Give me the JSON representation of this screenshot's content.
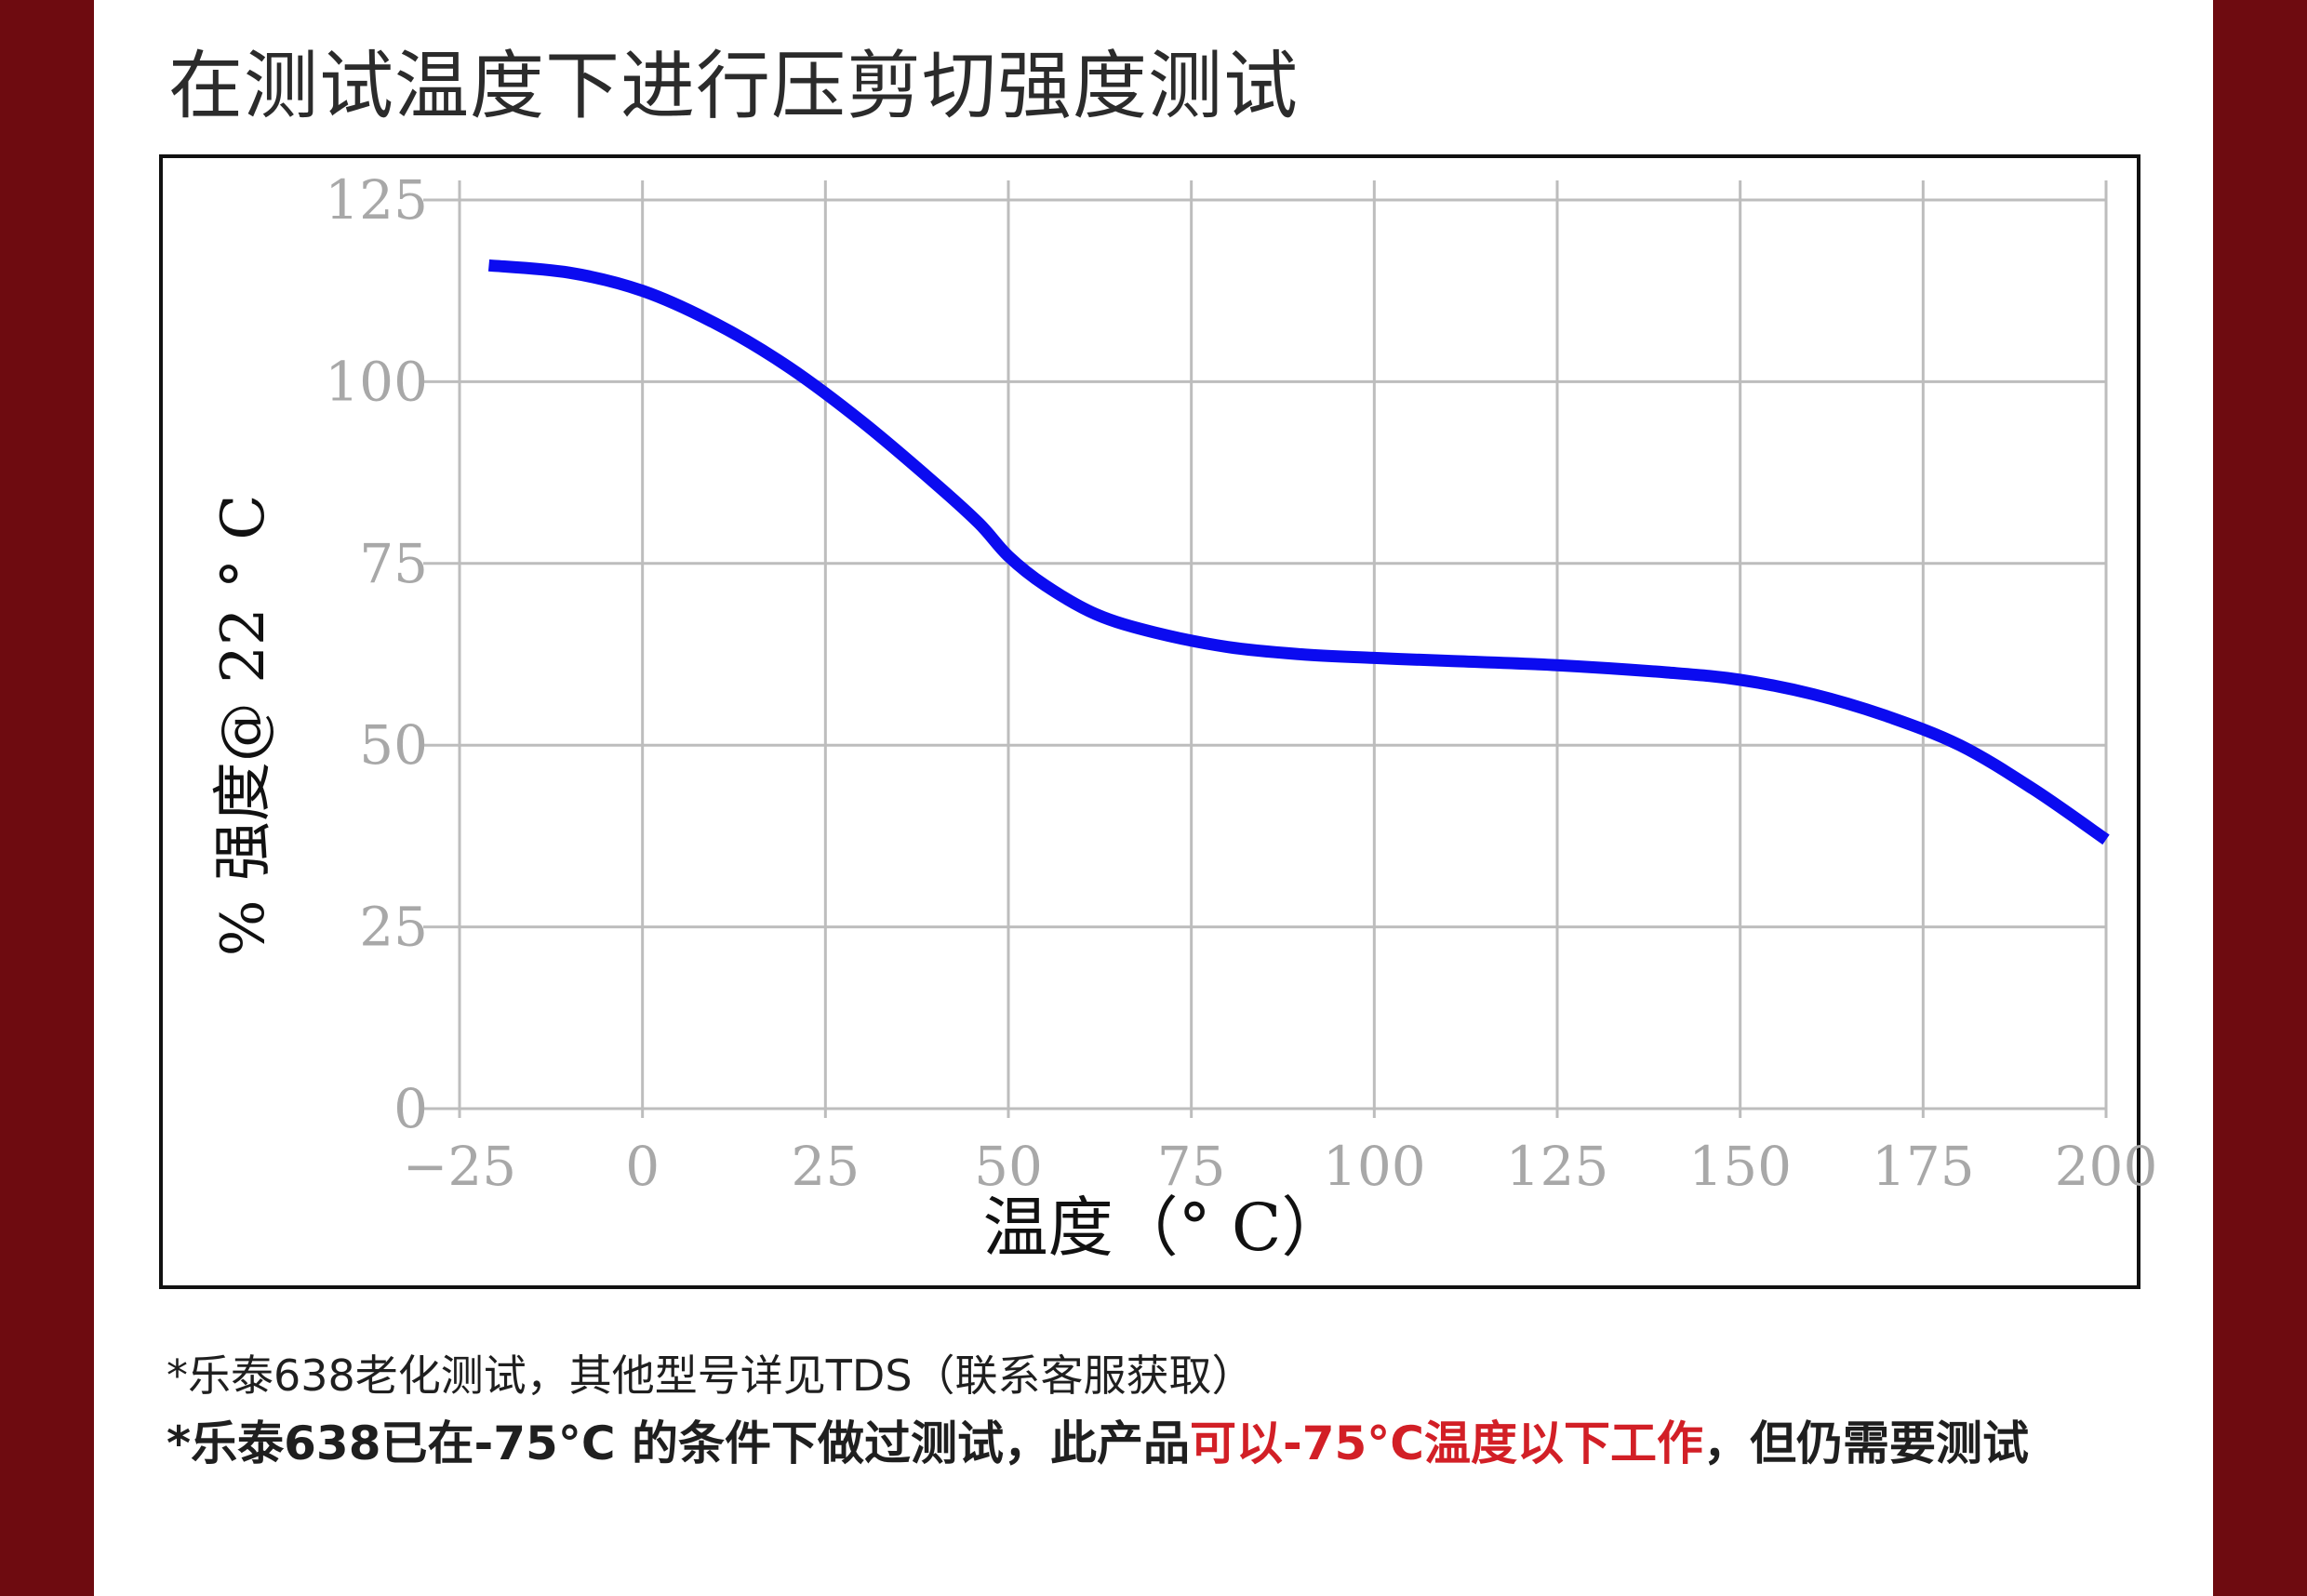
{
  "page": {
    "heading_partial": "",
    "title": "在测试温度下进行压剪切强度测试"
  },
  "chart_data": {
    "type": "line",
    "title": "",
    "xlabel": "温度（° C）",
    "ylabel": "% 强度@ 22 ° C",
    "xlim": [
      -25,
      200
    ],
    "ylim": [
      0,
      125
    ],
    "x_ticks": [
      -25,
      0,
      25,
      50,
      75,
      100,
      125,
      150,
      175,
      200
    ],
    "x_tick_labels": [
      "−25",
      "0",
      "25",
      "50",
      "75",
      "100",
      "125",
      "150",
      "175",
      "200"
    ],
    "y_ticks": [
      0,
      25,
      50,
      75,
      100,
      125
    ],
    "y_tick_labels": [
      "0",
      "25",
      "50",
      "75",
      "100",
      "125"
    ],
    "grid": true,
    "series": [
      {
        "color": "#0b0bf0",
        "x": [
          -21,
          -10,
          0,
          10,
          20,
          30,
          40,
          46,
          50,
          55,
          62,
          70,
          80,
          90,
          100,
          110,
          125,
          140,
          150,
          160,
          170,
          180,
          190,
          200
        ],
        "y": [
          116,
          115,
          112.5,
          108,
          102,
          94.5,
          86,
          80.5,
          76,
          72,
          68,
          65.5,
          63.5,
          62.5,
          62,
          61.6,
          61,
          60,
          59,
          57,
          54,
          50,
          44,
          37
        ]
      }
    ]
  },
  "footnotes": {
    "line1": "*乐泰638老化测试，其他型号详见TDS（联系客服获取）",
    "line2_prefix": "*乐泰638已在-75°C 的条件下做过测试，此产品",
    "line2_highlight": "可以-75°C温度以下工作",
    "line2_suffix": "，但仍需要测试"
  }
}
